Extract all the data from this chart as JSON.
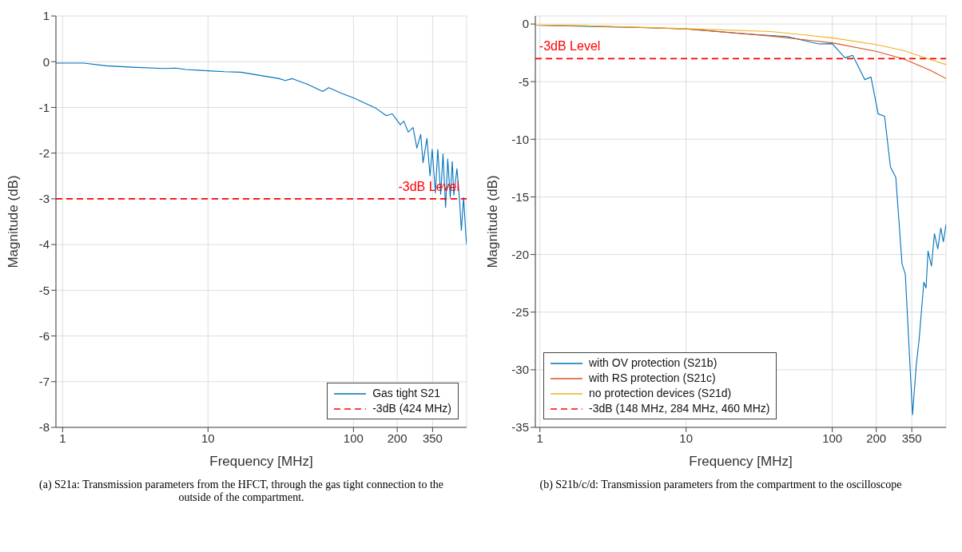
{
  "chart_data": [
    {
      "type": "line",
      "xlabel": "Frequency [MHz]",
      "ylabel": "Magnitude (dB)",
      "log": "x",
      "grid": true,
      "legend": "bottom right",
      "xlim": [
        0.9,
        600
      ],
      "ylim": [
        -8,
        1
      ],
      "xticks": [
        1,
        10,
        100,
        200,
        350
      ],
      "yticks": [
        1,
        0,
        -1,
        -2,
        -3,
        -4,
        -5,
        -6,
        -7,
        -8
      ],
      "series": [
        {
          "name": "Gas tight S21",
          "color": "#0072bd",
          "x": [
            0.9,
            1.4,
            2,
            3,
            5,
            6,
            7,
            10,
            13,
            16.8,
            30.8,
            34,
            38,
            48,
            61.5,
            67.6,
            84,
            100,
            143,
            168,
            185,
            210,
            222,
            238,
            257,
            273,
            290,
            301,
            320,
            336,
            348,
            366,
            380,
            398,
            413,
            430,
            445,
            463,
            478,
            490,
            515,
            535,
            552,
            572,
            594,
            600
          ],
          "values": [
            -0.03,
            -0.03,
            -0.09,
            -0.12,
            -0.15,
            -0.14,
            -0.17,
            -0.2,
            -0.22,
            -0.23,
            -0.37,
            -0.41,
            -0.37,
            -0.49,
            -0.65,
            -0.57,
            -0.7,
            -0.79,
            -1.02,
            -1.18,
            -1.14,
            -1.38,
            -1.3,
            -1.54,
            -1.44,
            -1.89,
            -1.59,
            -2.21,
            -1.68,
            -2.5,
            -1.92,
            -2.87,
            -1.92,
            -2.9,
            -2.02,
            -3.19,
            -2.13,
            -2.97,
            -2.18,
            -2.92,
            -2.34,
            -2.97,
            -3.69,
            -2.97,
            -3.83,
            -4.0
          ]
        },
        {
          "name": "-3dB (424 MHz)",
          "color": "#ff0000",
          "line_style": "dashed",
          "x": [
            0.9,
            600
          ],
          "values": [
            -3,
            -3
          ]
        }
      ],
      "annotations": [
        {
          "text": "-3dB Level",
          "x": 330,
          "y": -3
        },
        "(a) S21a: Transmission parameters from the HFCT, through the gas tight connection to the outside of the compartment."
      ]
    },
    {
      "type": "line",
      "xlabel": "Frequency [MHz]",
      "ylabel": "Magnitude (dB)",
      "log": "x",
      "grid": true,
      "legend": "bottom left",
      "xlim": [
        0.93,
        600
      ],
      "ylim": [
        -35,
        0.7
      ],
      "xticks": [
        1,
        10,
        100,
        200,
        350
      ],
      "yticks": [
        0,
        -5,
        -10,
        -15,
        -20,
        -25,
        -30,
        -35
      ],
      "series": [
        {
          "name": "with OV protection (S21b)",
          "color": "#0072bd",
          "x": [
            0.93,
            2,
            5,
            10,
            29.7,
            49,
            65,
            81,
            100,
            122,
            138,
            167,
            184,
            206,
            228,
            250,
            272,
            300,
            316,
            354,
            376,
            392,
            423,
            438,
            452,
            477,
            500,
            527,
            553,
            575,
            600
          ],
          "values": [
            -0.1,
            -0.2,
            -0.3,
            -0.43,
            -0.91,
            -1.08,
            -1.45,
            -1.73,
            -1.7,
            -2.93,
            -2.71,
            -4.82,
            -4.6,
            -7.8,
            -8.0,
            -12.4,
            -13.3,
            -20.8,
            -21.7,
            -33.9,
            -29.5,
            -27.5,
            -22.4,
            -22.9,
            -19.7,
            -21.0,
            -18.2,
            -19.5,
            -17.7,
            -18.9,
            -17.4
          ]
        },
        {
          "name": "with RS protection (S21c)",
          "color": "#d95319",
          "x": [
            0.93,
            2,
            5,
            10,
            38,
            100,
            202,
            310,
            465,
            600
          ],
          "values": [
            -0.1,
            -0.15,
            -0.3,
            -0.43,
            -1.04,
            -1.63,
            -2.39,
            -3.04,
            -4.0,
            -4.73
          ]
        },
        {
          "name": "no protection devices (S21d)",
          "color": "#edb120",
          "x": [
            0.93,
            2,
            5,
            10,
            38,
            63,
            100,
            202,
            310,
            410,
            600
          ],
          "values": [
            -0.1,
            -0.15,
            -0.28,
            -0.4,
            -0.65,
            -0.93,
            -1.2,
            -1.8,
            -2.32,
            -2.83,
            -3.52
          ]
        },
        {
          "name": "-3dB (148 MHz, 284 MHz, 460 MHz)",
          "color": "#ff0000",
          "line_style": "dashed",
          "x": [
            0.93,
            600
          ],
          "values": [
            -3,
            -3
          ]
        }
      ],
      "annotations": [
        {
          "text": "-3dB Level",
          "x": 1.6,
          "y": -3
        },
        "(b) S21b/c/d: Transmission parameters from the compartment to the oscilloscope"
      ]
    }
  ]
}
